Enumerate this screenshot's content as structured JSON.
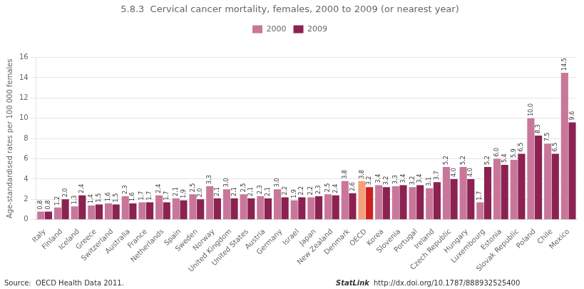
{
  "chart_data": {
    "type": "bar",
    "title": "5.8.3  Cervical cancer mortality, females, 2000 to 2009 (or nearest year)",
    "ylabel": "Age-standardised rates per 100 000 females",
    "annotations": [
      "Source:  OECD Health Data 2011.",
      "StatLink",
      "http://dx.doi.org/10.1787/888932525400"
    ],
    "categories": [
      "Italy",
      "Finland",
      "Iceland",
      "Greece",
      "Switzerland",
      "Australia",
      "France",
      "Netherlands",
      "Spain",
      "Sweden",
      "Norway",
      "United Kingdom",
      "United States",
      "Austria",
      "Germany",
      "Israel",
      "Japan",
      "New Zealand",
      "Denmark",
      "OECD",
      "Korea",
      "Slovenia",
      "Portugal",
      "Ireland",
      "Czech Republic",
      "Hungary",
      "Luxembourg",
      "Estonia",
      "Slovak Republic",
      "Poland",
      "Chile",
      "Mexico"
    ],
    "series": [
      {
        "name": "2000",
        "color": "#c8779a",
        "colors": [
          "#c8779a",
          "#c8779a",
          "#c8779a",
          "#c8779a",
          "#c8779a",
          "#c8779a",
          "#c8779a",
          "#c8779a",
          "#c8779a",
          "#c8779a",
          "#c8779a",
          "#c8779a",
          "#c8779a",
          "#c8779a",
          "#c8779a",
          "#c8779a",
          "#c8779a",
          "#c8779a",
          "#c8779a",
          "#f4a07a",
          "#c8779a",
          "#c8779a",
          "#c8779a",
          "#c8779a",
          "#c8779a",
          "#c8779a",
          "#c8779a",
          "#c8779a",
          "#c8779a",
          "#c8779a",
          "#c8779a",
          "#c8779a"
        ],
        "values": [
          0.8,
          1.2,
          1.3,
          1.4,
          1.6,
          2.3,
          1.7,
          2.4,
          2.1,
          2.5,
          3.3,
          3.0,
          2.5,
          2.3,
          3.0,
          1.9,
          2.2,
          2.5,
          3.8,
          3.8,
          3.4,
          3.3,
          3.2,
          3.1,
          5.2,
          5.2,
          1.7,
          6.0,
          5.9,
          10.0,
          7.5,
          14.5
        ],
        "value_labels": [
          "0.8",
          "1.2",
          "1.3",
          "1.4",
          "1.6",
          "2.3",
          "1.7",
          "2.4",
          "2.1",
          "2.5",
          "3.3",
          "3.0",
          "2.5",
          "2.3",
          "3.0",
          "1.9",
          "2.2",
          "2.5",
          "3.8",
          "3.8",
          "3.4",
          "3.3",
          "3.2",
          "3.1",
          "5.2",
          "5.2",
          "1.7",
          "6.0",
          "5.9",
          "10.0",
          "7.5",
          "14.5"
        ]
      },
      {
        "name": "2009",
        "color": "#8b2252",
        "colors": [
          "#8b2252",
          "#8b2252",
          "#8b2252",
          "#8b2252",
          "#8b2252",
          "#8b2252",
          "#8b2252",
          "#8b2252",
          "#8b2252",
          "#8b2252",
          "#8b2252",
          "#8b2252",
          "#8b2252",
          "#8b2252",
          "#8b2252",
          "#8b2252",
          "#8b2252",
          "#8b2252",
          "#8b2252",
          "#cc2222",
          "#8b2252",
          "#8b2252",
          "#8b2252",
          "#8b2252",
          "#8b2252",
          "#8b2252",
          "#8b2252",
          "#8b2252",
          "#8b2252",
          "#8b2252",
          "#8b2252",
          "#8b2252"
        ],
        "values": [
          0.8,
          2.0,
          2.4,
          1.5,
          1.5,
          1.6,
          1.7,
          1.7,
          1.9,
          2.0,
          2.1,
          2.1,
          2.1,
          2.1,
          2.2,
          2.2,
          2.3,
          2.4,
          2.6,
          3.2,
          3.2,
          3.4,
          3.4,
          3.7,
          4.0,
          4.0,
          5.2,
          5.4,
          6.5,
          8.3,
          6.5,
          9.6
        ],
        "value_labels": [
          "0.8",
          "2.0",
          "2.4",
          "1.5",
          "1.5",
          "1.6",
          "1.7",
          "1.7",
          "1.9",
          "2.0",
          "2.1",
          "2.1",
          "2.1",
          "2.1",
          "2.2",
          "2.2",
          "2.3",
          "2.4",
          "2.6",
          "3.2",
          "3.2",
          "3.4",
          "3.4",
          "3.7",
          "4.0",
          "4.0",
          "5.2",
          "5.4",
          "6.5",
          "8.3",
          "6.5",
          "9.6"
        ]
      }
    ],
    "ylim": [
      0,
      16
    ],
    "yticks": [
      0,
      2,
      4,
      6,
      8,
      10,
      12,
      14,
      16
    ],
    "grid": true,
    "legend": "top",
    "data_labels": true
  }
}
